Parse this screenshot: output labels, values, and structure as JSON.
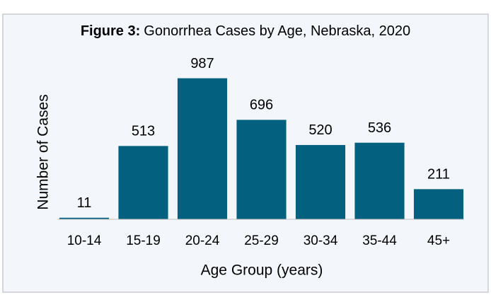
{
  "chart_data": {
    "type": "bar",
    "title_label": "Figure 3:",
    "title": "Gonorrhea Cases by Age, Nebraska, 2020",
    "xlabel": "Age Group (years)",
    "ylabel": "Number of Cases",
    "categories": [
      "10-14",
      "15-19",
      "20-24",
      "25-29",
      "30-34",
      "35-44",
      "45+"
    ],
    "values": [
      11,
      513,
      987,
      696,
      520,
      536,
      211
    ],
    "color": "#03607e",
    "ylim": [
      0,
      1000
    ],
    "grid": false
  }
}
